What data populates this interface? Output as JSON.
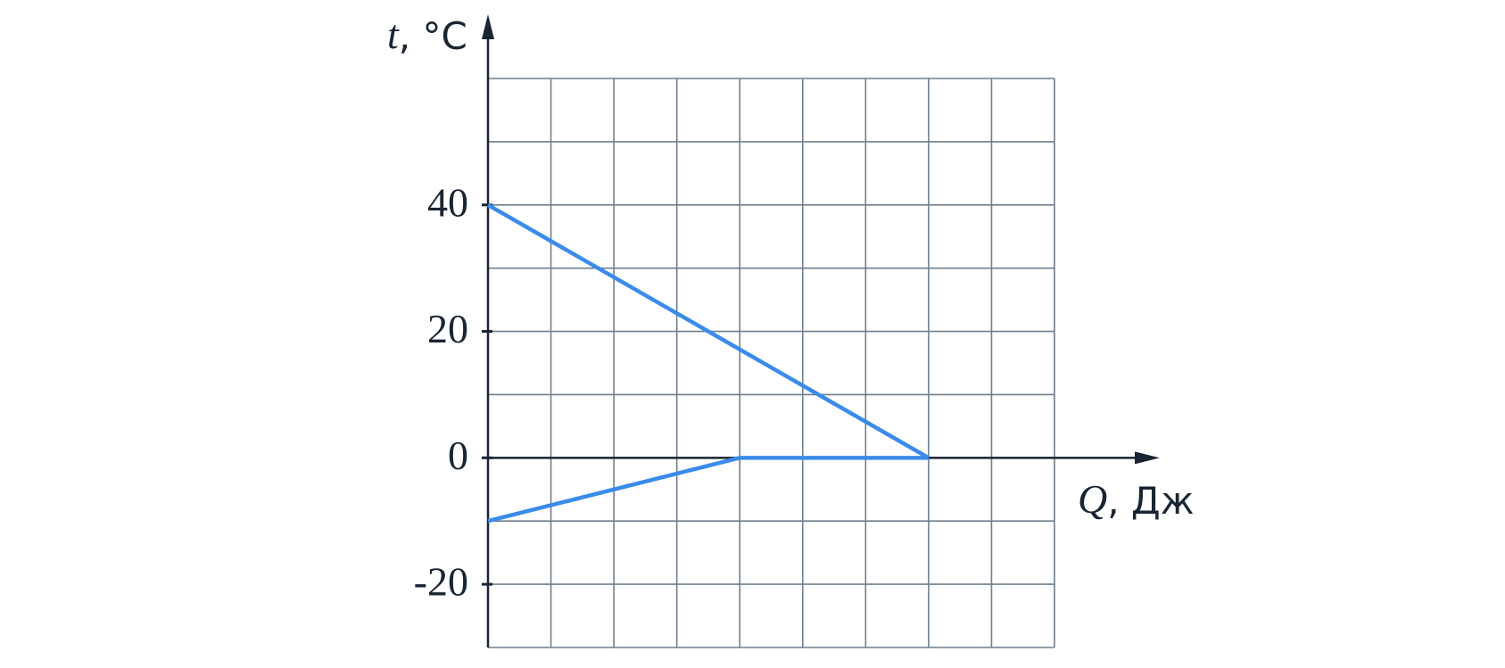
{
  "chart_data": {
    "type": "line",
    "xlabel": {
      "symbol": "Q",
      "unit": ", Дж"
    },
    "ylabel": {
      "symbol": "t",
      "unit": ", °C"
    },
    "xlim": [
      0,
      9
    ],
    "ylim": [
      -30,
      60
    ],
    "xgrid": [
      0,
      1,
      2,
      3,
      4,
      5,
      6,
      7,
      8,
      9
    ],
    "ygrid": [
      -30,
      -20,
      -10,
      0,
      10,
      20,
      30,
      40,
      50,
      60
    ],
    "yticks": [
      -20,
      0,
      20,
      40
    ],
    "grid": true,
    "series": [
      {
        "color": "#3a8bea",
        "x": [
          0,
          7
        ],
        "values": [
          40,
          0
        ]
      },
      {
        "color": "#3a8bea",
        "x": [
          0,
          4,
          7
        ],
        "values": [
          -10,
          0,
          0
        ]
      }
    ]
  }
}
